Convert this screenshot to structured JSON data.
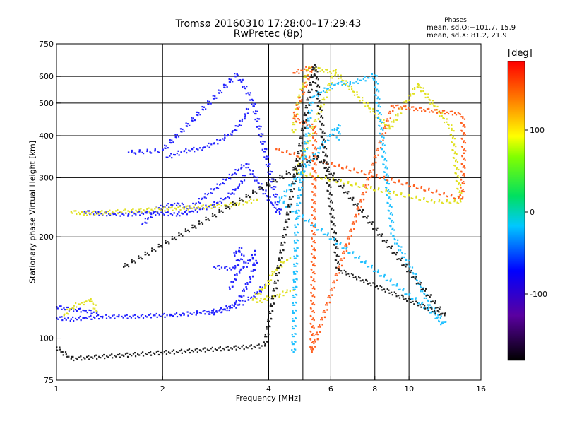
{
  "chart_data": {
    "type": "scatter",
    "title": "Tromsø 20160310 17:28:00–17:29:43",
    "subtitle": "RwPretec (8p)",
    "xlabel": "Frequency [MHz]",
    "ylabel": "Stationary phase Virtual Height [km]",
    "xscale": "log",
    "yscale": "log",
    "xlim": [
      1,
      16
    ],
    "ylim": [
      75,
      750
    ],
    "x_ticks": [
      1,
      2,
      4,
      6,
      8,
      10,
      16
    ],
    "y_ticks": [
      75,
      100,
      200,
      300,
      400,
      500,
      600,
      750
    ],
    "x_grid": [
      2,
      4,
      5,
      6,
      8,
      10
    ],
    "y_grid": [
      100,
      200,
      300,
      400,
      500,
      600
    ],
    "grid": true,
    "legend": {
      "heading": "Phases",
      "line1": "mean, sd,O:−101.7, 15.9",
      "line2": "mean, sd,X:  81.2, 21.9"
    },
    "colorbar": {
      "label": "[deg]",
      "range": [
        -180,
        180
      ],
      "ticks": [
        100,
        0,
        -100
      ],
      "colormap": "rainbow: black-purple-blue-cyan-green-yellow-orange-red"
    },
    "series": [
      {
        "polarization": "O",
        "color": "#2020ff",
        "traces": [
          {
            "segment": "E layer",
            "points": [
              [
                1.0,
                115
              ],
              [
                1.1,
                114
              ],
              [
                1.2,
                115
              ],
              [
                1.35,
                116
              ],
              [
                1.5,
                116
              ],
              [
                1.7,
                116
              ],
              [
                1.9,
                117
              ],
              [
                2.1,
                117
              ],
              [
                2.3,
                118
              ],
              [
                2.5,
                119
              ],
              [
                2.7,
                120
              ],
              [
                2.9,
                121
              ],
              [
                3.1,
                123
              ],
              [
                3.3,
                126
              ],
              [
                3.5,
                130
              ],
              [
                3.7,
                136
              ],
              [
                3.9,
                144
              ]
            ]
          },
          {
            "segment": "E layer upper edge",
            "points": [
              [
                1.0,
                124
              ],
              [
                1.1,
                122
              ],
              [
                1.2,
                121
              ],
              [
                1.3,
                119
              ]
            ]
          },
          {
            "segment": "F1 layer",
            "points": [
              [
                2.7,
                118
              ],
              [
                3.0,
                122
              ],
              [
                3.2,
                127
              ],
              [
                3.35,
                133
              ],
              [
                3.45,
                142
              ],
              [
                3.55,
                150
              ],
              [
                3.62,
                160
              ],
              [
                3.68,
                170
              ]
            ]
          },
          {
            "segment": "F1 cusp",
            "points": [
              [
                3.1,
                140
              ],
              [
                3.2,
                150
              ],
              [
                3.3,
                158
              ],
              [
                3.4,
                163
              ],
              [
                3.5,
                167
              ],
              [
                3.6,
                174
              ],
              [
                3.65,
                182
              ]
            ]
          },
          {
            "segment": "F1 spread",
            "points": [
              [
                2.8,
                163
              ],
              [
                3.0,
                162
              ],
              [
                3.2,
                161
              ],
              [
                3.3,
                170
              ],
              [
                3.2,
                176
              ],
              [
                3.3,
                186
              ],
              [
                3.4,
                168
              ]
            ]
          },
          {
            "segment": "F2 layer",
            "points": [
              [
                1.2,
                238
              ],
              [
                1.3,
                235
              ],
              [
                1.45,
                234
              ],
              [
                1.6,
                234
              ],
              [
                1.8,
                236
              ],
              [
                2.0,
                235
              ],
              [
                2.2,
                234
              ],
              [
                2.4,
                238
              ],
              [
                2.6,
                243
              ],
              [
                2.8,
                250
              ],
              [
                3.0,
                260
              ],
              [
                3.15,
                270
              ],
              [
                3.28,
                282
              ],
              [
                3.36,
                292
              ],
              [
                3.42,
                305
              ]
            ]
          },
          {
            "segment": "F2 upper",
            "points": [
              [
                2.05,
                345
              ],
              [
                2.3,
                360
              ],
              [
                2.6,
                368
              ],
              [
                2.8,
                380
              ],
              [
                3.0,
                395
              ],
              [
                3.15,
                410
              ],
              [
                3.3,
                430
              ],
              [
                3.42,
                455
              ],
              [
                3.5,
                480
              ]
            ]
          },
          {
            "segment": "F2 sparse",
            "points": [
              [
                1.75,
                218
              ],
              [
                1.95,
                244
              ],
              [
                2.2,
                252
              ],
              [
                2.4,
                244
              ],
              [
                3.35,
                322
              ],
              [
                3.45,
                330
              ],
              [
                4.1,
                250
              ],
              [
                4.3,
                235
              ],
              [
                3.6,
                510
              ],
              [
                3.25,
                610
              ],
              [
                2.0,
                362
              ],
              [
                1.6,
                357
              ]
            ]
          }
        ]
      },
      {
        "polarization": "X",
        "color": "#e0e020",
        "traces": [
          {
            "segment": "E/F1 cusp",
            "points": [
              [
                3.6,
                130
              ],
              [
                3.75,
                136
              ],
              [
                3.9,
                142
              ],
              [
                4.0,
                148
              ],
              [
                4.1,
                155
              ],
              [
                4.2,
                160
              ],
              [
                4.3,
                164
              ],
              [
                4.4,
                168
              ],
              [
                4.5,
                171
              ],
              [
                4.6,
                173
              ]
            ]
          },
          {
            "segment": "lower branch",
            "points": [
              [
                3.7,
                128
              ],
              [
                3.9,
                131
              ],
              [
                4.1,
                133
              ],
              [
                4.3,
                135
              ],
              [
                4.5,
                137
              ],
              [
                4.7,
                139
              ]
            ]
          },
          {
            "segment": "F2",
            "points": [
              [
                1.1,
                238
              ],
              [
                1.2,
                235
              ],
              [
                3.0,
                248
              ],
              [
                3.3,
                252
              ],
              [
                3.7,
                258
              ]
            ]
          },
          {
            "segment": "E low",
            "points": [
              [
                1.05,
                117
              ],
              [
                1.12,
                125
              ],
              [
                1.2,
                128
              ],
              [
                1.25,
                131
              ],
              [
                1.3,
                120
              ]
            ]
          },
          {
            "segment": "scattered",
            "points": [
              [
                4.7,
                410
              ],
              [
                4.8,
                480
              ],
              [
                5.0,
                560
              ],
              [
                5.2,
                640
              ],
              [
                6.2,
                615
              ],
              [
                8.8,
                420
              ],
              [
                10.6,
                570
              ],
              [
                13.2,
                420
              ],
              [
                14.0,
                255
              ],
              [
                11.8,
                255
              ],
              [
                4.8,
                312
              ],
              [
                6.2,
                630
              ]
            ]
          }
        ]
      },
      {
        "polarization": "other",
        "color": "#ff6020",
        "traces": [
          {
            "segment": "scattered",
            "points": [
              [
                4.7,
                615
              ],
              [
                5.3,
                640
              ],
              [
                4.7,
                450
              ],
              [
                5.4,
                425
              ],
              [
                5.3,
                91
              ],
              [
                9.0,
                490
              ],
              [
                13.9,
                465
              ],
              [
                14.2,
                455
              ],
              [
                14.3,
                355
              ],
              [
                14.1,
                260
              ],
              [
                4.2,
                365
              ]
            ]
          }
        ]
      },
      {
        "polarization": "other",
        "color": "#20c0ff",
        "traces": [
          {
            "segment": "scattered",
            "points": [
              [
                4.7,
                91
              ],
              [
                4.8,
                228
              ],
              [
                5.3,
                520
              ],
              [
                6.3,
                575
              ],
              [
                6.8,
                570
              ],
              [
                8.0,
                605
              ],
              [
                9.0,
                202
              ],
              [
                12.3,
                110
              ],
              [
                12.7,
                112
              ],
              [
                4.3,
                257
              ],
              [
                6.3,
                430
              ],
              [
                6.3,
                390
              ]
            ]
          }
        ]
      },
      {
        "polarization": "other",
        "color": "#202020",
        "traces": [
          {
            "segment": "scattered",
            "points": [
              [
                1.0,
                94
              ],
              [
                1.1,
                87
              ],
              [
                3.9,
                95
              ],
              [
                5.4,
                650
              ],
              [
                6.3,
                160
              ],
              [
                12.6,
                117
              ],
              [
                5.5,
                348
              ],
              [
                1.55,
                163
              ]
            ]
          }
        ]
      }
    ]
  }
}
